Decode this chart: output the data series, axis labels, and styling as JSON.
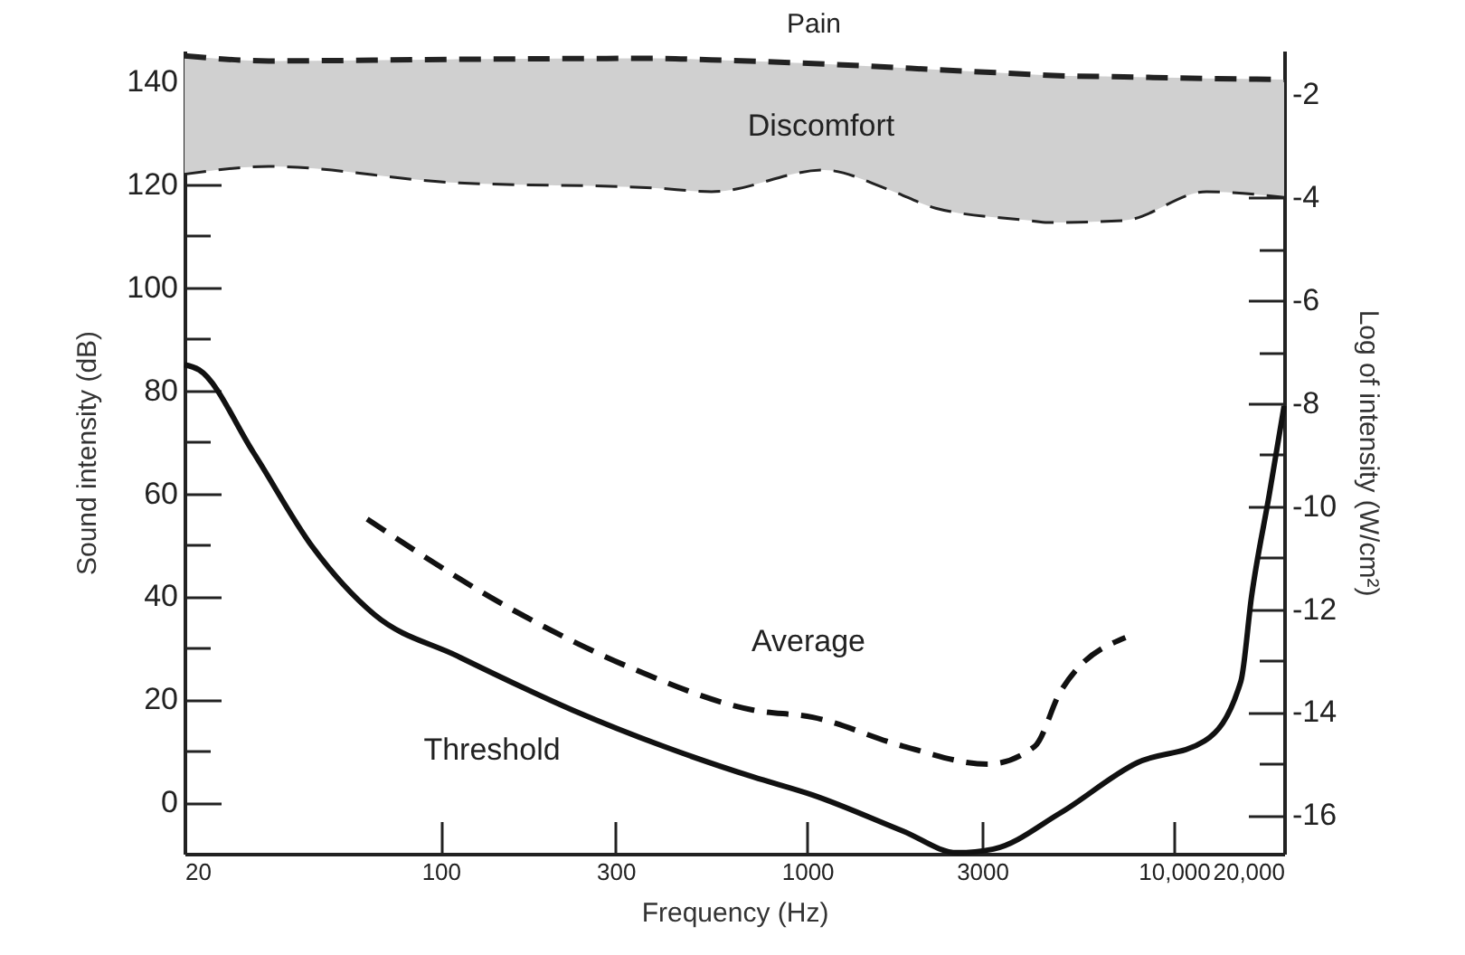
{
  "chart_data": {
    "type": "line",
    "xlabel": "Frequency (Hz)",
    "ylabel": "Sound intensity (dB)",
    "y2label": "Log of intensity (W/cm²)",
    "log": "x",
    "xlim": [
      20,
      20000
    ],
    "xticks": [
      20,
      100,
      300,
      1000,
      3000,
      {
        "value": 10000,
        "label": "10,000"
      },
      {
        "value": 20000,
        "label": "20,000"
      }
    ],
    "ylim": [
      -10,
      146
    ],
    "yticks": [
      0,
      {
        "value": 10,
        "label": null
      },
      20,
      {
        "value": 30,
        "label": null
      },
      40,
      {
        "value": 50,
        "label": null
      },
      60,
      {
        "value": 70,
        "label": null
      },
      80,
      {
        "value": 90,
        "label": null
      },
      100,
      {
        "value": 110,
        "label": null
      },
      120,
      {
        "value": 130,
        "label": null
      },
      140
    ],
    "y2lim": [
      -16.75,
      -1.15
    ],
    "y2ticks": [
      -16,
      {
        "value": -15,
        "label": null
      },
      -14,
      {
        "value": -13,
        "label": null
      },
      -12,
      {
        "value": -11,
        "label": null
      },
      -10,
      {
        "value": -9,
        "label": null
      },
      -8,
      {
        "value": -7,
        "label": null
      },
      -6,
      {
        "value": -5,
        "label": null
      },
      -4,
      {
        "value": -3,
        "label": null
      },
      -2
    ],
    "grid": false,
    "marker": "none",
    "series": [
      {
        "color": "#222222",
        "line_style": "dashed",
        "x": [
          20,
          34,
          106,
          386,
          548,
          1110,
          1668,
          2240,
          4040,
          4530,
          7300,
          12280,
          20000
        ],
        "values": [
          145,
          144,
          144.3,
          144.5,
          144.2,
          143.4,
          142.8,
          142.3,
          141.4,
          141.2,
          140.9,
          140.6,
          140.4
        ]
      },
      {
        "color": "#222222",
        "line_style": "dashed",
        "x": [
          20,
          34,
          106,
          386,
          548,
          1110,
          1668,
          2240,
          4040,
          4530,
          7300,
          12280,
          20000
        ],
        "values": [
          122,
          123.5,
          120.4,
          119.3,
          118.6,
          122.8,
          119,
          115.4,
          113,
          112.6,
          113,
          118.6,
          117.5
        ],
        "lower": [
          122,
          123.5,
          120.4,
          119.3,
          118.6,
          122.8,
          119,
          115.4,
          113,
          112.6,
          113,
          118.6,
          117.5
        ],
        "upper": [
          145,
          144,
          144.3,
          144.5,
          144.2,
          143.4,
          142.8,
          142.3,
          141.4,
          141.2,
          140.9,
          140.6,
          140.4
        ]
      },
      {
        "color": "#111111",
        "line_style": "solid",
        "x": [
          20,
          21.9,
          30.8,
          44.8,
          65.8,
          111,
          229,
          404,
          713,
          1035,
          1825,
          2565,
          3220,
          4900,
          7960,
          12140,
          15240,
          16300,
          18240,
          20000
        ],
        "values": [
          85,
          84,
          68,
          49.5,
          36.5,
          28.4,
          17.9,
          10.9,
          4.9,
          1.4,
          -5.6,
          -9.8,
          -9.1,
          -2.1,
          7.7,
          11.9,
          23.5,
          40,
          60,
          77
        ]
      },
      {
        "color": "#111111",
        "line_style": "dashed",
        "x": [
          63,
          156,
          333,
          713,
          1035,
          1825,
          3110,
          4180,
          4900,
          7380
        ],
        "values": [
          55,
          37.5,
          26,
          17.9,
          16.5,
          10.9,
          7.4,
          10.9,
          21.4,
          32
        ]
      }
    ],
    "annotations": [
      "Pain",
      "Discomfort",
      "Average",
      "Threshold"
    ]
  }
}
